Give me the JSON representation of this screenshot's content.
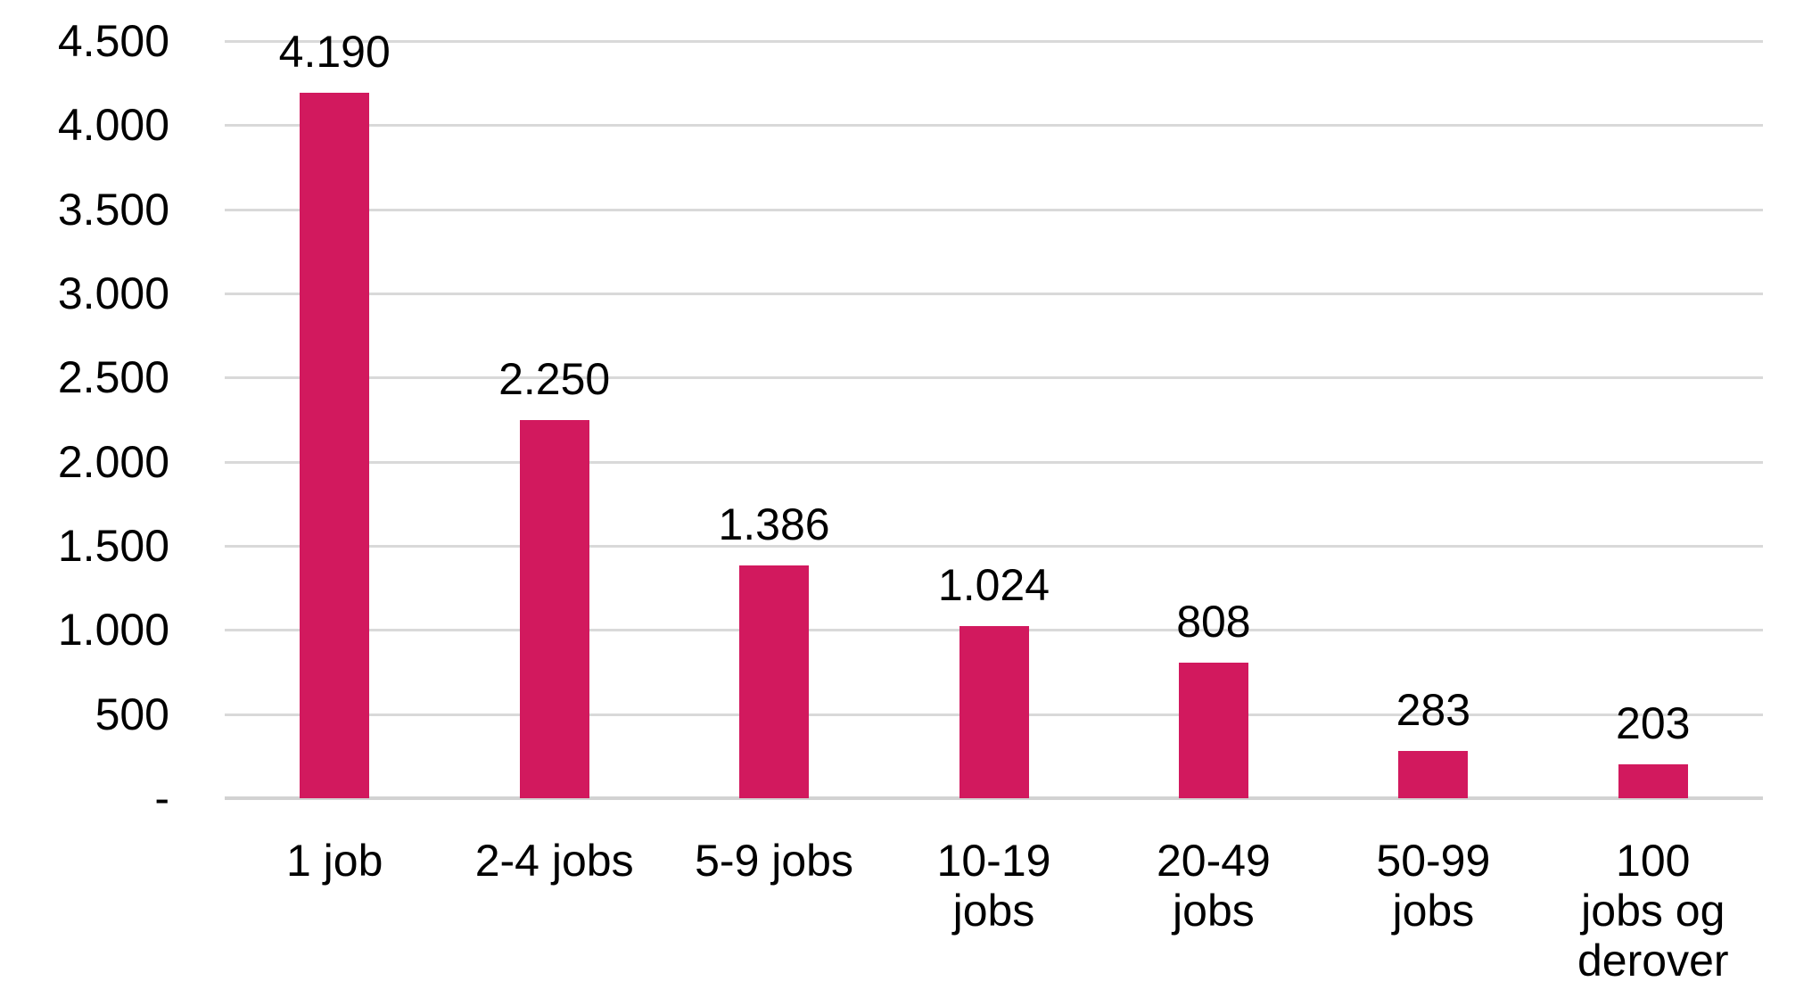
{
  "chart_data": {
    "type": "bar",
    "title": "",
    "xlabel": "",
    "ylabel": "",
    "legend": "none",
    "grid": true,
    "categories": [
      "1 job",
      "2-4 jobs",
      "5-9 jobs",
      "10-19 jobs",
      "20-49 jobs",
      "50-99 jobs",
      "100 jobs og derover"
    ],
    "category_display": [
      "1 job",
      "2-4 jobs",
      "5-9 jobs",
      "10-19\njobs",
      "20-49\njobs",
      "50-99\njobs",
      "100\njobs og\nderover"
    ],
    "values": [
      4190,
      2250,
      1386,
      1024,
      808,
      283,
      203
    ],
    "value_labels": [
      "4.190",
      "2.250",
      "1.386",
      "1.024",
      "808",
      "283",
      "203"
    ],
    "y_axis": {
      "min": 0,
      "max": 4500,
      "step": 500,
      "ticks": [
        "4.500",
        "4.000",
        "3.500",
        "3.000",
        "2.500",
        "2.000",
        "1.500",
        "1.000",
        "500",
        "-"
      ],
      "tick_values": [
        4500,
        4000,
        3500,
        3000,
        2500,
        2000,
        1500,
        1000,
        500,
        0
      ]
    },
    "colors": {
      "bar": "#D2195E",
      "gridline": "#D9D9D9",
      "baseline": "#D2D2D2",
      "text": "#000000",
      "background": "#FFFFFF"
    }
  }
}
